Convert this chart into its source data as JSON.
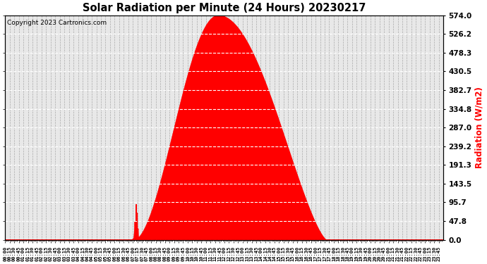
{
  "title": "Solar Radiation per Minute (24 Hours) 20230217",
  "ylabel": "Radiation (W/m2)",
  "copyright": "Copyright 2023 Cartronics.com",
  "bg_color": "#ffffff",
  "plot_bg_color": "#e8e8e8",
  "grid_color_x": "#aaaaaa",
  "grid_color_y": "#ffffff",
  "fill_color": "#ff0000",
  "line_color": "#ff0000",
  "zero_line_color": "#ff0000",
  "ylabel_color": "#ff0000",
  "yticks": [
    0.0,
    47.8,
    95.7,
    143.5,
    191.3,
    239.2,
    287.0,
    334.8,
    382.7,
    430.5,
    478.3,
    526.2,
    574.0
  ],
  "ymax": 574.0,
  "minutes_per_day": 1440,
  "sunrise_minute": 425,
  "sunset_minute": 1055,
  "peak_minute": 700,
  "peak_value": 574.0,
  "x_label_interval": 15
}
